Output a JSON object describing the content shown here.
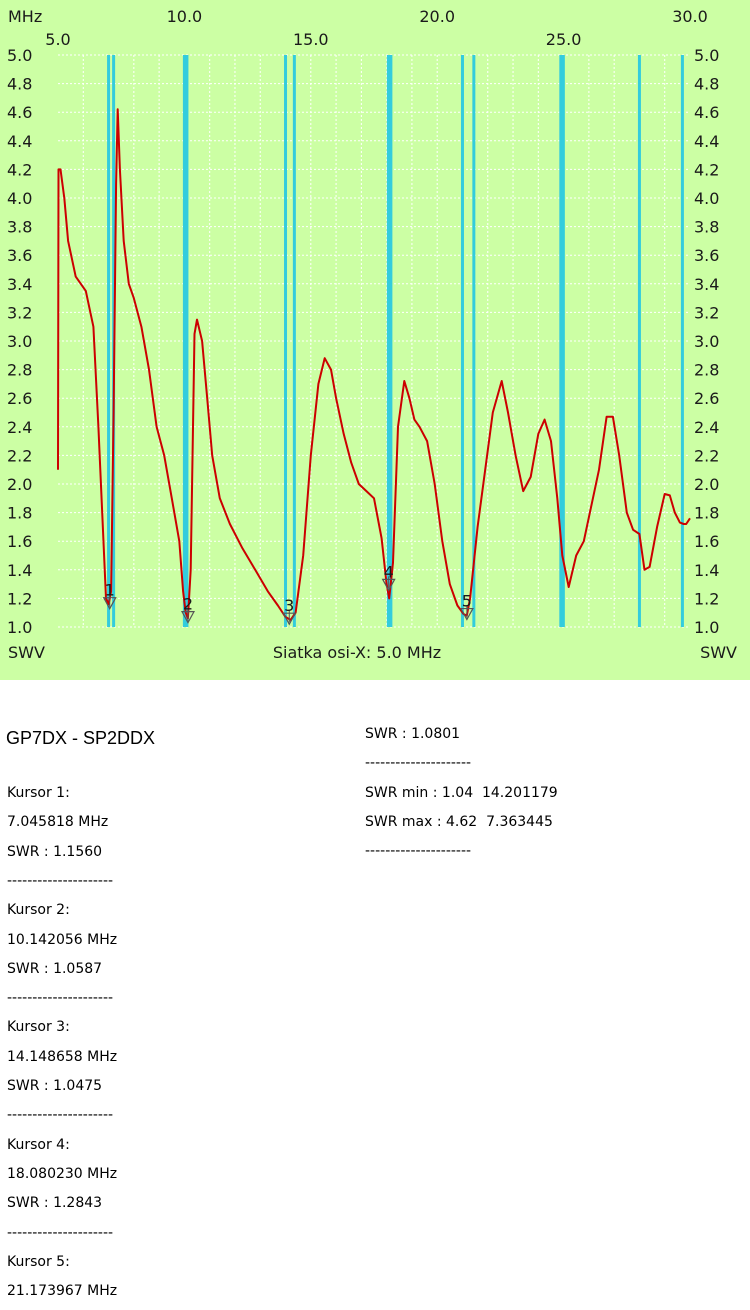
{
  "chart_data": {
    "type": "line",
    "x_unit_label": "MHz",
    "x_top_ticks": [
      "10.0",
      "20.0",
      "30.0"
    ],
    "x_ticks": [
      "5.0",
      "15.0",
      "25.0"
    ],
    "xlim": [
      5.0,
      30.0
    ],
    "ylim": [
      1.0,
      5.0
    ],
    "y_ticks": [
      "1.0",
      "1.2",
      "1.4",
      "1.6",
      "1.8",
      "2.0",
      "2.2",
      "2.4",
      "2.6",
      "2.8",
      "3.0",
      "3.2",
      "3.4",
      "3.6",
      "3.8",
      "4.0",
      "4.2",
      "4.4",
      "4.6",
      "4.8",
      "5.0"
    ],
    "left_axis_label": "SWV",
    "right_axis_label": "SWV",
    "bottom_caption": "Siatka osi-X: 5.0 MHz",
    "grid": true,
    "series": [
      {
        "color": "#cc0000",
        "x": [
          5.0,
          5.02,
          5.1,
          5.25,
          5.4,
          5.7,
          6.1,
          6.4,
          6.6,
          6.75,
          6.9,
          7.0,
          7.05,
          7.1,
          7.2,
          7.3,
          7.36,
          7.45,
          7.6,
          7.8,
          8.0,
          8.3,
          8.6,
          8.9,
          9.2,
          9.5,
          9.8,
          9.95,
          10.05,
          10.14,
          10.25,
          10.4,
          10.5,
          10.7,
          10.9,
          11.1,
          11.4,
          11.8,
          12.3,
          12.8,
          13.3,
          13.7,
          14.0,
          14.2,
          14.4,
          14.7,
          15.0,
          15.3,
          15.55,
          15.8,
          16.0,
          16.3,
          16.6,
          16.9,
          17.2,
          17.5,
          17.8,
          18.0,
          18.1,
          18.25,
          18.45,
          18.7,
          18.9,
          19.1,
          19.3,
          19.6,
          19.9,
          20.2,
          20.5,
          20.8,
          21.05,
          21.17,
          21.3,
          21.6,
          21.9,
          22.2,
          22.55,
          22.8,
          23.1,
          23.4,
          23.7,
          24.0,
          24.25,
          24.5,
          24.75,
          24.95,
          25.2,
          25.5,
          25.8,
          26.1,
          26.4,
          26.7,
          26.95,
          27.2,
          27.5,
          27.75,
          28.0,
          28.2,
          28.4,
          28.7,
          29.0,
          29.2,
          29.4,
          29.6,
          29.75,
          29.85,
          30.0
        ],
        "y": [
          2.1,
          4.2,
          4.2,
          4.0,
          3.7,
          3.45,
          3.35,
          3.1,
          2.4,
          1.8,
          1.2,
          1.16,
          1.2,
          1.25,
          2.5,
          4.1,
          4.62,
          4.2,
          3.7,
          3.4,
          3.3,
          3.1,
          2.8,
          2.4,
          2.2,
          1.9,
          1.6,
          1.25,
          1.1,
          1.06,
          1.4,
          3.05,
          3.15,
          3.0,
          2.6,
          2.2,
          1.9,
          1.72,
          1.55,
          1.4,
          1.25,
          1.15,
          1.07,
          1.05,
          1.1,
          1.5,
          2.2,
          2.7,
          2.88,
          2.8,
          2.6,
          2.35,
          2.15,
          2.0,
          1.95,
          1.9,
          1.62,
          1.3,
          1.2,
          1.45,
          2.4,
          2.72,
          2.6,
          2.45,
          2.4,
          2.3,
          2.0,
          1.6,
          1.3,
          1.15,
          1.09,
          1.08,
          1.2,
          1.7,
          2.1,
          2.5,
          2.72,
          2.5,
          2.2,
          1.95,
          2.05,
          2.35,
          2.45,
          2.3,
          1.9,
          1.5,
          1.28,
          1.5,
          1.6,
          1.85,
          2.1,
          2.47,
          2.47,
          2.2,
          1.8,
          1.68,
          1.65,
          1.4,
          1.42,
          1.7,
          1.93,
          1.92,
          1.8,
          1.73,
          1.72,
          1.72,
          1.76
        ]
      }
    ],
    "vertical_markers": [
      7.0,
      7.2,
      10.0,
      10.1,
      14.0,
      14.35,
      18.068,
      18.168,
      21.0,
      21.45,
      24.89,
      24.99,
      28.0,
      29.7
    ],
    "cursors": [
      {
        "label": "1",
        "x": 7.045818,
        "y": 1.156
      },
      {
        "label": "2",
        "x": 10.142056,
        "y": 1.0587
      },
      {
        "label": "3",
        "x": 14.148658,
        "y": 1.0475
      },
      {
        "label": "4",
        "x": 18.08023,
        "y": 1.2843
      },
      {
        "label": "5",
        "x": 21.173967,
        "y": 1.0801
      }
    ]
  },
  "report": {
    "title": "GP7DX - SP2DDX",
    "left_lines": [
      "Kursor 1:",
      "7.045818 MHz",
      "SWR : 1.1560",
      "---------------------",
      "Kursor 2:",
      "10.142056 MHz",
      "SWR : 1.0587",
      "---------------------",
      "Kursor 3:",
      "14.148658 MHz",
      "SWR : 1.0475",
      "---------------------",
      "Kursor 4:",
      "18.080230 MHz",
      "SWR : 1.2843",
      "---------------------",
      "Kursor 5:",
      "21.173967 MHz"
    ],
    "right_lines": [
      "SWR : 1.0801",
      "---------------------",
      "SWR min : 1.04  14.201179",
      "SWR max : 4.62  7.363445",
      "---------------------"
    ]
  }
}
